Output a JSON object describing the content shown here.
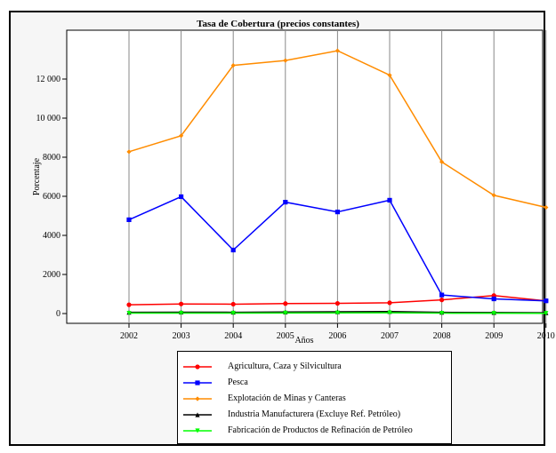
{
  "chart_data": {
    "type": "line",
    "title": "Tasa de Cobertura (precios constantes)",
    "xlabel": "Años",
    "ylabel": "Porcentaje",
    "categories": [
      "2002",
      "2003",
      "2004",
      "2005",
      "2006",
      "2007",
      "2008",
      "2009",
      "2010"
    ],
    "ylim": [
      -500,
      14500
    ],
    "yticks": [
      0,
      2000,
      4000,
      6000,
      8000,
      10000,
      12000
    ],
    "ytick_labels": [
      "0",
      "2000",
      "4000",
      "6000",
      "8000",
      "10 000",
      "12 000"
    ],
    "grid": "vertical",
    "legend_position": "bottom",
    "series": [
      {
        "name": "Agricultura, Caza y Silvicultura",
        "color": "#ff0000",
        "marker": "circle",
        "values": [
          450,
          490,
          480,
          510,
          520,
          550,
          700,
          920,
          650
        ]
      },
      {
        "name": "Pesca",
        "color": "#0000ff",
        "marker": "square",
        "values": [
          4800,
          5980,
          3250,
          5700,
          5200,
          5800,
          950,
          750,
          650
        ]
      },
      {
        "name": "Explotación de Minas y Canteras",
        "color": "#ff8c00",
        "marker": "diamond",
        "values": [
          8280,
          9100,
          12700,
          12950,
          13450,
          12200,
          7760,
          6050,
          5430
        ]
      },
      {
        "name": "Industria Manufacturera (Excluye Ref. Petróleo)",
        "color": "#000000",
        "marker": "triangle-up",
        "values": [
          60,
          70,
          65,
          80,
          90,
          100,
          60,
          50,
          40
        ]
      },
      {
        "name": "Fabricación de Productos de Refinación de Petróleo",
        "color": "#00ff00",
        "marker": "triangle-down",
        "values": [
          20,
          25,
          22,
          30,
          35,
          40,
          20,
          15,
          10
        ]
      }
    ]
  }
}
